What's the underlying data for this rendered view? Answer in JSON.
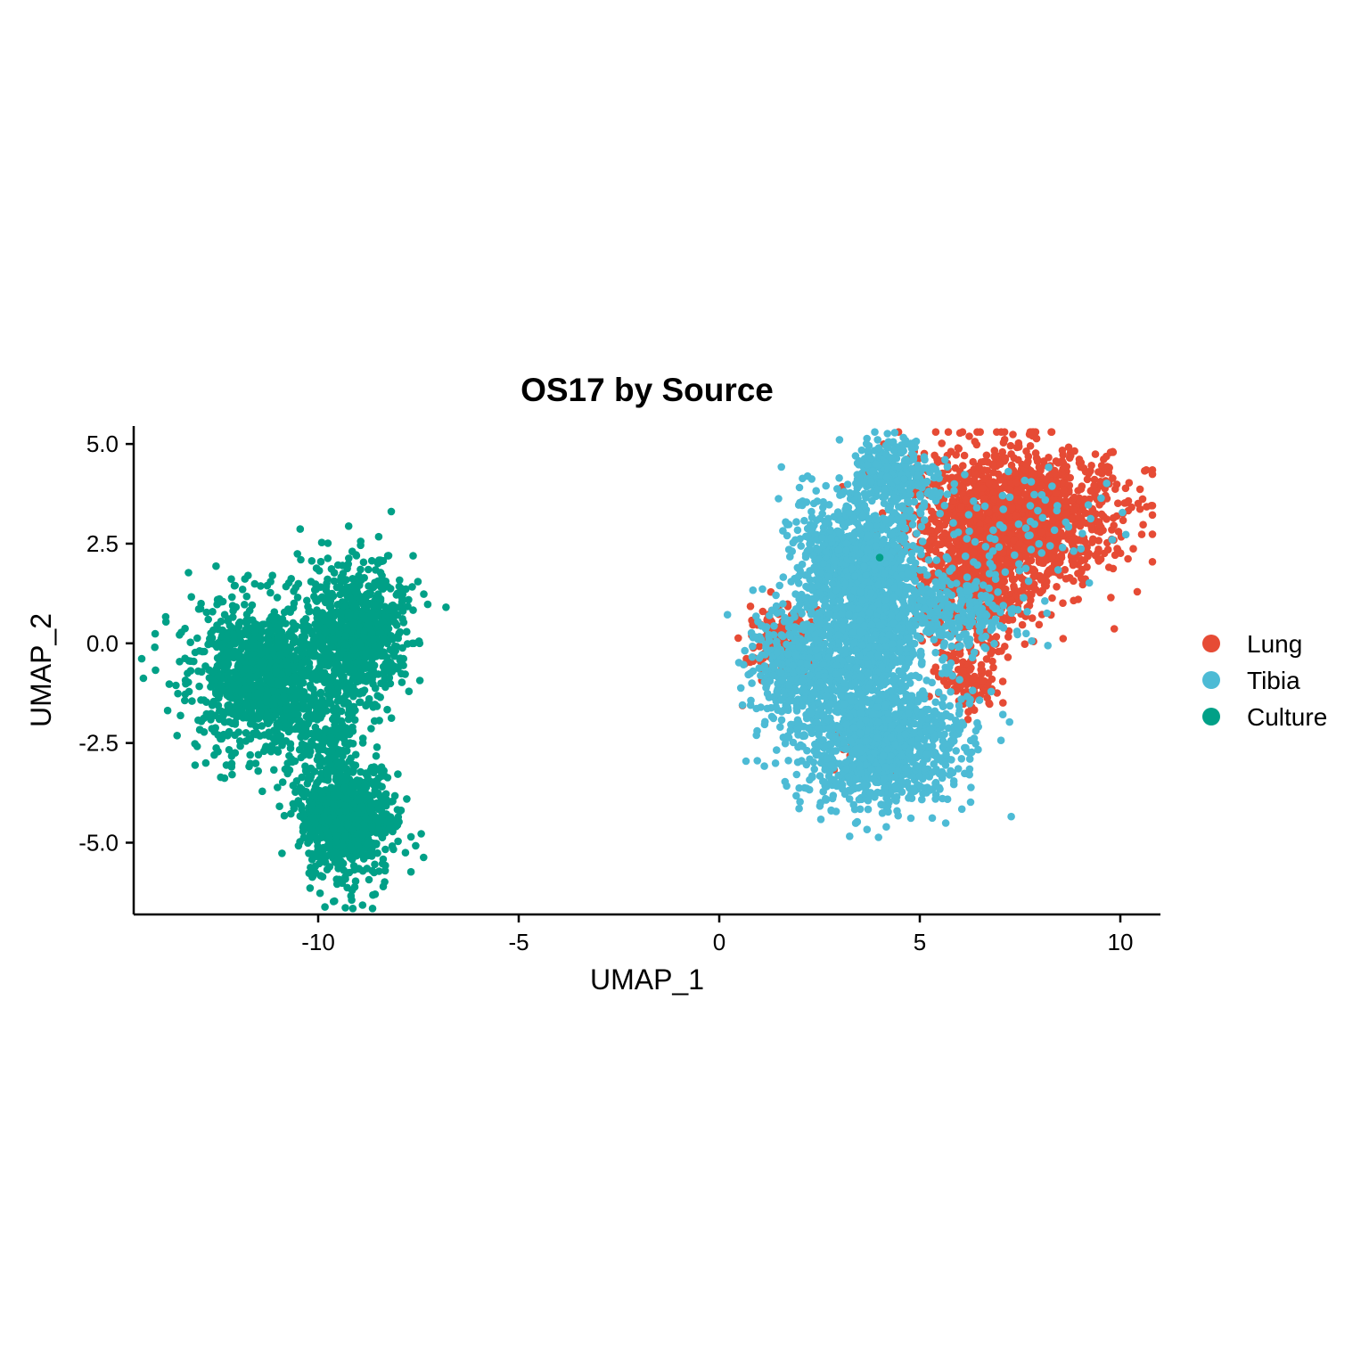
{
  "chart_data": {
    "type": "scatter",
    "title": "OS17 by Source",
    "xlabel": "UMAP_1",
    "ylabel": "UMAP_2",
    "xlim": [
      -14.6,
      11.0
    ],
    "ylim": [
      -6.8,
      5.45
    ],
    "x_ticks": [
      {
        "value": -10,
        "label": "-10"
      },
      {
        "value": -5,
        "label": "-5"
      },
      {
        "value": 0,
        "label": "0"
      },
      {
        "value": 5,
        "label": "5"
      },
      {
        "value": 10,
        "label": "10"
      }
    ],
    "y_ticks": [
      {
        "value": 5.0,
        "label": "5.0"
      },
      {
        "value": 2.5,
        "label": "2.5"
      },
      {
        "value": 0.0,
        "label": "0.0"
      },
      {
        "value": -2.5,
        "label": "-2.5"
      },
      {
        "value": -5.0,
        "label": "-5.0"
      }
    ],
    "grid": false,
    "legend_position": "right",
    "series": [
      {
        "name": "Lung",
        "color": "#E64B35",
        "clusters": [
          {
            "cx": 7.4,
            "cy": 3.2,
            "sx": 1.25,
            "sy": 0.85,
            "n": 1500
          },
          {
            "cx": 6.4,
            "cy": 1.6,
            "sx": 0.7,
            "sy": 0.9,
            "n": 500
          },
          {
            "cx": 1.6,
            "cy": 0.1,
            "sx": 0.45,
            "sy": 0.55,
            "n": 150
          },
          {
            "cx": 6.2,
            "cy": -0.9,
            "sx": 0.35,
            "sy": 0.35,
            "n": 100
          },
          {
            "cx": 3.7,
            "cy": -2.6,
            "sx": 0.5,
            "sy": 0.35,
            "n": 60
          }
        ]
      },
      {
        "name": "Tibia",
        "color": "#4DBBD5",
        "clusters": [
          {
            "cx": 3.5,
            "cy": 1.9,
            "sx": 0.8,
            "sy": 0.95,
            "n": 1100
          },
          {
            "cx": 4.3,
            "cy": 4.2,
            "sx": 0.5,
            "sy": 0.45,
            "n": 300
          },
          {
            "cx": 4.0,
            "cy": -2.5,
            "sx": 1.05,
            "sy": 0.8,
            "n": 1200
          },
          {
            "cx": 2.1,
            "cy": -0.6,
            "sx": 0.65,
            "sy": 0.7,
            "n": 500
          },
          {
            "cx": 3.9,
            "cy": 0.0,
            "sx": 0.55,
            "sy": 0.8,
            "n": 450
          },
          {
            "cx": 5.8,
            "cy": 0.8,
            "sx": 0.9,
            "sy": 0.55,
            "n": 250
          },
          {
            "cx": 7.5,
            "cy": 3.1,
            "sx": 1.2,
            "sy": 0.8,
            "n": 80
          }
        ]
      },
      {
        "name": "Culture",
        "color": "#00A087",
        "clusters": [
          {
            "cx": -11.3,
            "cy": -0.9,
            "sx": 0.95,
            "sy": 0.95,
            "n": 1100
          },
          {
            "cx": -9.0,
            "cy": 0.3,
            "sx": 0.6,
            "sy": 0.85,
            "n": 800
          },
          {
            "cx": -9.3,
            "cy": -4.4,
            "sx": 0.6,
            "sy": 0.75,
            "n": 800
          },
          {
            "cx": -9.7,
            "cy": -2.4,
            "sx": 0.35,
            "sy": 0.6,
            "n": 120
          },
          {
            "cx": 4.0,
            "cy": 2.15,
            "sx": 0.0,
            "sy": 0.0,
            "n": 1
          }
        ]
      }
    ]
  }
}
